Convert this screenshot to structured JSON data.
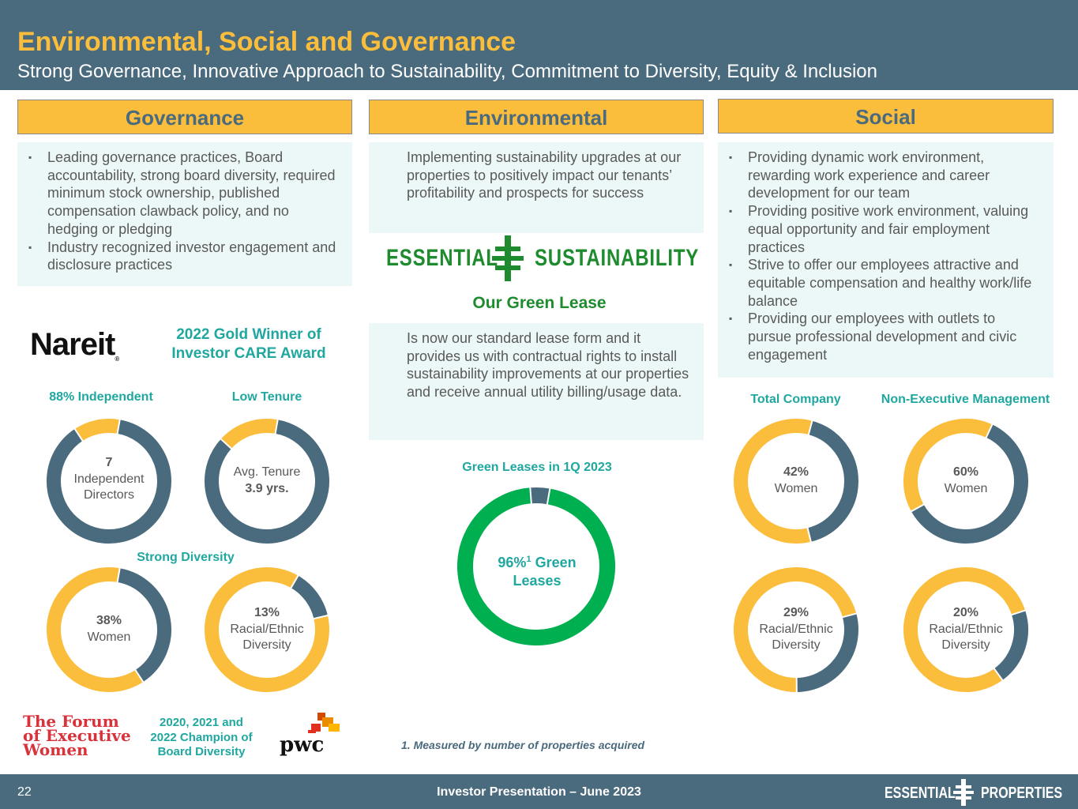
{
  "header": {
    "title": "Environmental, Social and Governance",
    "subtitle": "Strong Governance, Innovative Approach to Sustainability, Commitment to Diversity, Equity & Inclusion"
  },
  "governance": {
    "heading": "Governance",
    "bullets": [
      "Leading governance practices, Board accountability, strong board diversity, required minimum stock ownership, published compensation clawback policy, and no hedging or pledging",
      "Industry recognized investor engagement and disclosure practices"
    ],
    "nareit_logo": "Nareit",
    "award": "2022 Gold Winner of Investor CARE Award",
    "label_independent": "88% Independent",
    "label_tenure": "Low Tenure",
    "label_diversity": "Strong Diversity",
    "donut_directors": {
      "line1": "7",
      "line2": "Independent",
      "line3": "Directors",
      "value_pct": 88
    },
    "donut_tenure": {
      "line1": "Avg. Tenure",
      "line2": "3.9 yrs.",
      "value_pct": 84
    },
    "donut_women": {
      "line1": "38%",
      "line2": "Women",
      "value_pct": 38
    },
    "donut_racial": {
      "line1": "13%",
      "line2": "Racial/Ethnic",
      "line3": "Diversity",
      "value_pct": 13
    },
    "forum_logo": [
      "The Forum",
      "of Executive",
      "Women"
    ],
    "champion": "2020, 2021 and 2022 Champion of Board Diversity",
    "pwc_logo": "pwc"
  },
  "environmental": {
    "heading": "Environmental",
    "intro": "Implementing sustainability upgrades at our properties to positively impact our tenants’ profitability and prospects for success",
    "logo_left": "ESSENTIAL",
    "logo_right": "SUSTAINABILITY",
    "green_lease_title": "Our Green Lease",
    "green_lease_text": "Is now our standard lease form and it provides us with contractual rights to install sustainability improvements at our properties and receive annual utility billing/usage data.",
    "chart_label": "Green Leases in 1Q 2023",
    "donut": {
      "pct": "96%",
      "sup": "1",
      "line1": " Green",
      "line2": "Leases",
      "value_pct": 96
    },
    "footnote": "1. Measured by number of properties acquired"
  },
  "social": {
    "heading": "Social",
    "bullets": [
      "Providing dynamic work environment, rewarding work experience and career development for our team",
      "Providing positive work environment, valuing equal opportunity and fair employment practices",
      "Strive to offer our employees attractive and equitable compensation and healthy work/life balance",
      "Providing our employees with outlets to pursue professional development and civic engagement"
    ],
    "label_total": "Total Company",
    "label_nonexec": "Non-Executive Management",
    "donut_total_women": {
      "line1": "42%",
      "line2": "Women",
      "value_pct": 42
    },
    "donut_nonexec_women": {
      "line1": "60%",
      "line2": "Women",
      "value_pct": 60
    },
    "donut_total_racial": {
      "line1": "29%",
      "line2": "Racial/Ethnic",
      "line3": "Diversity",
      "value_pct": 29
    },
    "donut_nonexec_racial": {
      "line1": "20%",
      "line2": "Racial/Ethnic",
      "line3": "Diversity",
      "value_pct": 20
    }
  },
  "footer": {
    "page": "22",
    "center": "Investor Presentation – June 2023",
    "logo_left": "ESSENTIAL",
    "logo_right": "PROPERTIES"
  },
  "colors": {
    "slate": "#4a6a7d",
    "gold": "#fbbd3c",
    "teal": "#1fa7a0",
    "green": "#00b050",
    "panel": "#ecf8f7",
    "dark_green": "#1e8c2e"
  }
}
